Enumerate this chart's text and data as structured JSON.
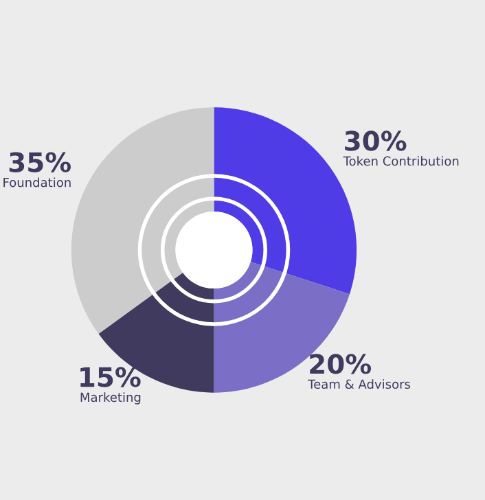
{
  "chart_data": {
    "type": "donut",
    "categories": [
      "Token Contribution",
      "Team & Advisors",
      "Marketing",
      "Foundation"
    ],
    "values": [
      30,
      20,
      15,
      35
    ],
    "colors": [
      "#4f3ce6",
      "#7a6ec6",
      "#3f3a5e",
      "#cccccc"
    ],
    "value_labels": [
      "30%",
      "20%",
      "15%",
      "35%"
    ],
    "legend": false
  }
}
